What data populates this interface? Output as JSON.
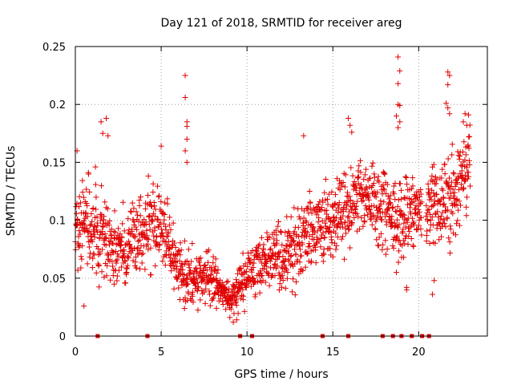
{
  "chart_data": {
    "type": "scatter",
    "title": "Day 121 of 2018, SRMTID for receiver areg",
    "xlabel": "GPS time / hours",
    "ylabel": "SRMTID / TECUs",
    "xlim": [
      0,
      24
    ],
    "ylim": [
      0,
      0.25
    ],
    "x_ticks": [
      0,
      5,
      10,
      15,
      20
    ],
    "x_tick_labels": [
      "0",
      "5",
      "10",
      "15",
      "20"
    ],
    "y_ticks": [
      0,
      0.05,
      0.1,
      0.15,
      0.2,
      0.25
    ],
    "y_tick_labels": [
      "0",
      "0.05",
      "0.1",
      "0.15",
      "0.2",
      "0.25"
    ],
    "grid": true,
    "marker": "+",
    "color": "#e00000",
    "trend": [
      {
        "x": 0.0,
        "mean": 0.1,
        "spread": 0.03
      },
      {
        "x": 1.0,
        "mean": 0.095,
        "spread": 0.035
      },
      {
        "x": 2.0,
        "mean": 0.08,
        "spread": 0.03
      },
      {
        "x": 3.0,
        "mean": 0.075,
        "spread": 0.028
      },
      {
        "x": 4.0,
        "mean": 0.09,
        "spread": 0.03
      },
      {
        "x": 5.0,
        "mean": 0.095,
        "spread": 0.03
      },
      {
        "x": 6.0,
        "mean": 0.055,
        "spread": 0.02
      },
      {
        "x": 7.0,
        "mean": 0.05,
        "spread": 0.02
      },
      {
        "x": 8.0,
        "mean": 0.05,
        "spread": 0.02
      },
      {
        "x": 9.0,
        "mean": 0.03,
        "spread": 0.01
      },
      {
        "x": 10.0,
        "mean": 0.05,
        "spread": 0.02
      },
      {
        "x": 11.0,
        "mean": 0.065,
        "spread": 0.025
      },
      {
        "x": 12.0,
        "mean": 0.07,
        "spread": 0.025
      },
      {
        "x": 13.0,
        "mean": 0.08,
        "spread": 0.03
      },
      {
        "x": 14.0,
        "mean": 0.095,
        "spread": 0.03
      },
      {
        "x": 15.0,
        "mean": 0.1,
        "spread": 0.03
      },
      {
        "x": 16.0,
        "mean": 0.115,
        "spread": 0.03
      },
      {
        "x": 17.0,
        "mean": 0.12,
        "spread": 0.025
      },
      {
        "x": 18.0,
        "mean": 0.11,
        "spread": 0.03
      },
      {
        "x": 19.0,
        "mean": 0.1,
        "spread": 0.03
      },
      {
        "x": 20.0,
        "mean": 0.11,
        "spread": 0.025
      },
      {
        "x": 21.0,
        "mean": 0.11,
        "spread": 0.03
      },
      {
        "x": 22.0,
        "mean": 0.12,
        "spread": 0.035
      },
      {
        "x": 23.0,
        "mean": 0.15,
        "spread": 0.03
      }
    ],
    "data_gaps_hours": [
      20.3
    ],
    "outliers": [
      {
        "x": 0.1,
        "y": 0.16
      },
      {
        "x": 1.5,
        "y": 0.185
      },
      {
        "x": 1.6,
        "y": 0.175
      },
      {
        "x": 1.8,
        "y": 0.188
      },
      {
        "x": 1.9,
        "y": 0.173
      },
      {
        "x": 5.0,
        "y": 0.164
      },
      {
        "x": 6.4,
        "y": 0.225
      },
      {
        "x": 6.4,
        "y": 0.206
      },
      {
        "x": 6.5,
        "y": 0.185
      },
      {
        "x": 6.5,
        "y": 0.181
      },
      {
        "x": 6.5,
        "y": 0.17
      },
      {
        "x": 6.4,
        "y": 0.16
      },
      {
        "x": 6.5,
        "y": 0.15
      },
      {
        "x": 13.3,
        "y": 0.173
      },
      {
        "x": 15.9,
        "y": 0.188
      },
      {
        "x": 16.0,
        "y": 0.182
      },
      {
        "x": 16.1,
        "y": 0.176
      },
      {
        "x": 18.8,
        "y": 0.241
      },
      {
        "x": 18.9,
        "y": 0.229
      },
      {
        "x": 18.8,
        "y": 0.218
      },
      {
        "x": 18.8,
        "y": 0.2
      },
      {
        "x": 18.9,
        "y": 0.199
      },
      {
        "x": 18.7,
        "y": 0.19
      },
      {
        "x": 18.9,
        "y": 0.185
      },
      {
        "x": 18.8,
        "y": 0.18
      },
      {
        "x": 19.3,
        "y": 0.042
      },
      {
        "x": 19.3,
        "y": 0.04
      },
      {
        "x": 18.7,
        "y": 0.055
      },
      {
        "x": 21.7,
        "y": 0.228
      },
      {
        "x": 21.8,
        "y": 0.225
      },
      {
        "x": 21.7,
        "y": 0.217
      },
      {
        "x": 21.6,
        "y": 0.201
      },
      {
        "x": 21.7,
        "y": 0.197
      },
      {
        "x": 21.8,
        "y": 0.192
      },
      {
        "x": 22.7,
        "y": 0.192
      },
      {
        "x": 22.9,
        "y": 0.191
      },
      {
        "x": 22.6,
        "y": 0.185
      },
      {
        "x": 22.8,
        "y": 0.182
      },
      {
        "x": 20.8,
        "y": 0.036
      },
      {
        "x": 20.9,
        "y": 0.048
      },
      {
        "x": 0.5,
        "y": 0.026
      },
      {
        "x": 9.2,
        "y": 0.012
      },
      {
        "x": 9.4,
        "y": 0.014
      },
      {
        "x": 9.0,
        "y": 0.016
      }
    ],
    "zero_markers_hours": [
      1.3,
      4.2,
      9.6,
      10.3,
      14.4,
      15.9,
      17.9,
      18.5,
      19.0,
      19.6,
      20.2,
      20.6
    ],
    "random_seed": 121
  }
}
